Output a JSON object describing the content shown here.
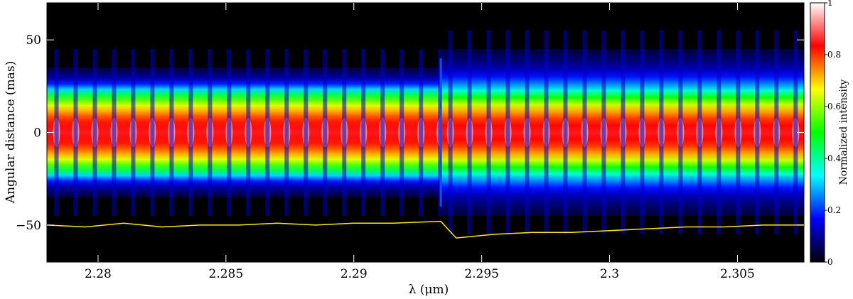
{
  "chart_data": {
    "type": "heatmap",
    "title": "",
    "xlabel": "λ (μm)",
    "ylabel": "Angular distance (mas)",
    "xlim": [
      2.278,
      2.3076
    ],
    "ylim": [
      -70,
      70
    ],
    "xticks": [
      2.28,
      2.285,
      2.29,
      2.295,
      2.3,
      2.305
    ],
    "xtick_labels": [
      "2.28",
      "2.285",
      "2.29",
      "2.295",
      "2.3",
      "2.305"
    ],
    "yticks": [
      -50,
      0,
      50
    ],
    "ytick_labels": [
      "−50",
      "0",
      "50"
    ],
    "colorbar": {
      "label": "Normalized intensity",
      "range": [
        0,
        1
      ],
      "ticks": [
        0,
        0.2,
        0.4,
        0.6,
        0.8,
        1
      ],
      "tick_labels": [
        "0",
        "0.2",
        "0.4",
        "0.6",
        "0.8",
        "1"
      ],
      "colormap": [
        "#000000",
        "#0000ff",
        "#00ffff",
        "#00ff00",
        "#ffff00",
        "#ff0000",
        "#ffffff"
      ]
    },
    "background_color": "#000000",
    "discontinuity_wavelength": 2.2934,
    "emission_profile": {
      "left_segment": {
        "x_range": [
          2.278,
          2.2934
        ],
        "core_halfwidth_mas": 22,
        "wing_halfwidth_mas": 35,
        "peak_intensity": 0.85
      },
      "right_segment": {
        "x_range": [
          2.2934,
          2.3076
        ],
        "core_halfwidth_mas": 22,
        "wing_halfwidth_mas": 45,
        "peak_intensity": 0.85
      }
    },
    "overlay_spectrum": {
      "name": "",
      "color": "#ffe619",
      "x": [
        2.278,
        2.2795,
        2.281,
        2.2825,
        2.284,
        2.2855,
        2.287,
        2.2885,
        2.29,
        2.2915,
        2.2934,
        2.294,
        2.2955,
        2.297,
        2.2985,
        2.3,
        2.3015,
        2.303,
        2.3045,
        2.306,
        2.3076
      ],
      "y": [
        -50,
        -51,
        -49,
        -51,
        -50,
        -50,
        -49,
        -50,
        -49,
        -49,
        -48,
        -57,
        -55,
        -54,
        -54,
        -53,
        -52,
        -51,
        -51,
        -50,
        -50
      ]
    }
  }
}
